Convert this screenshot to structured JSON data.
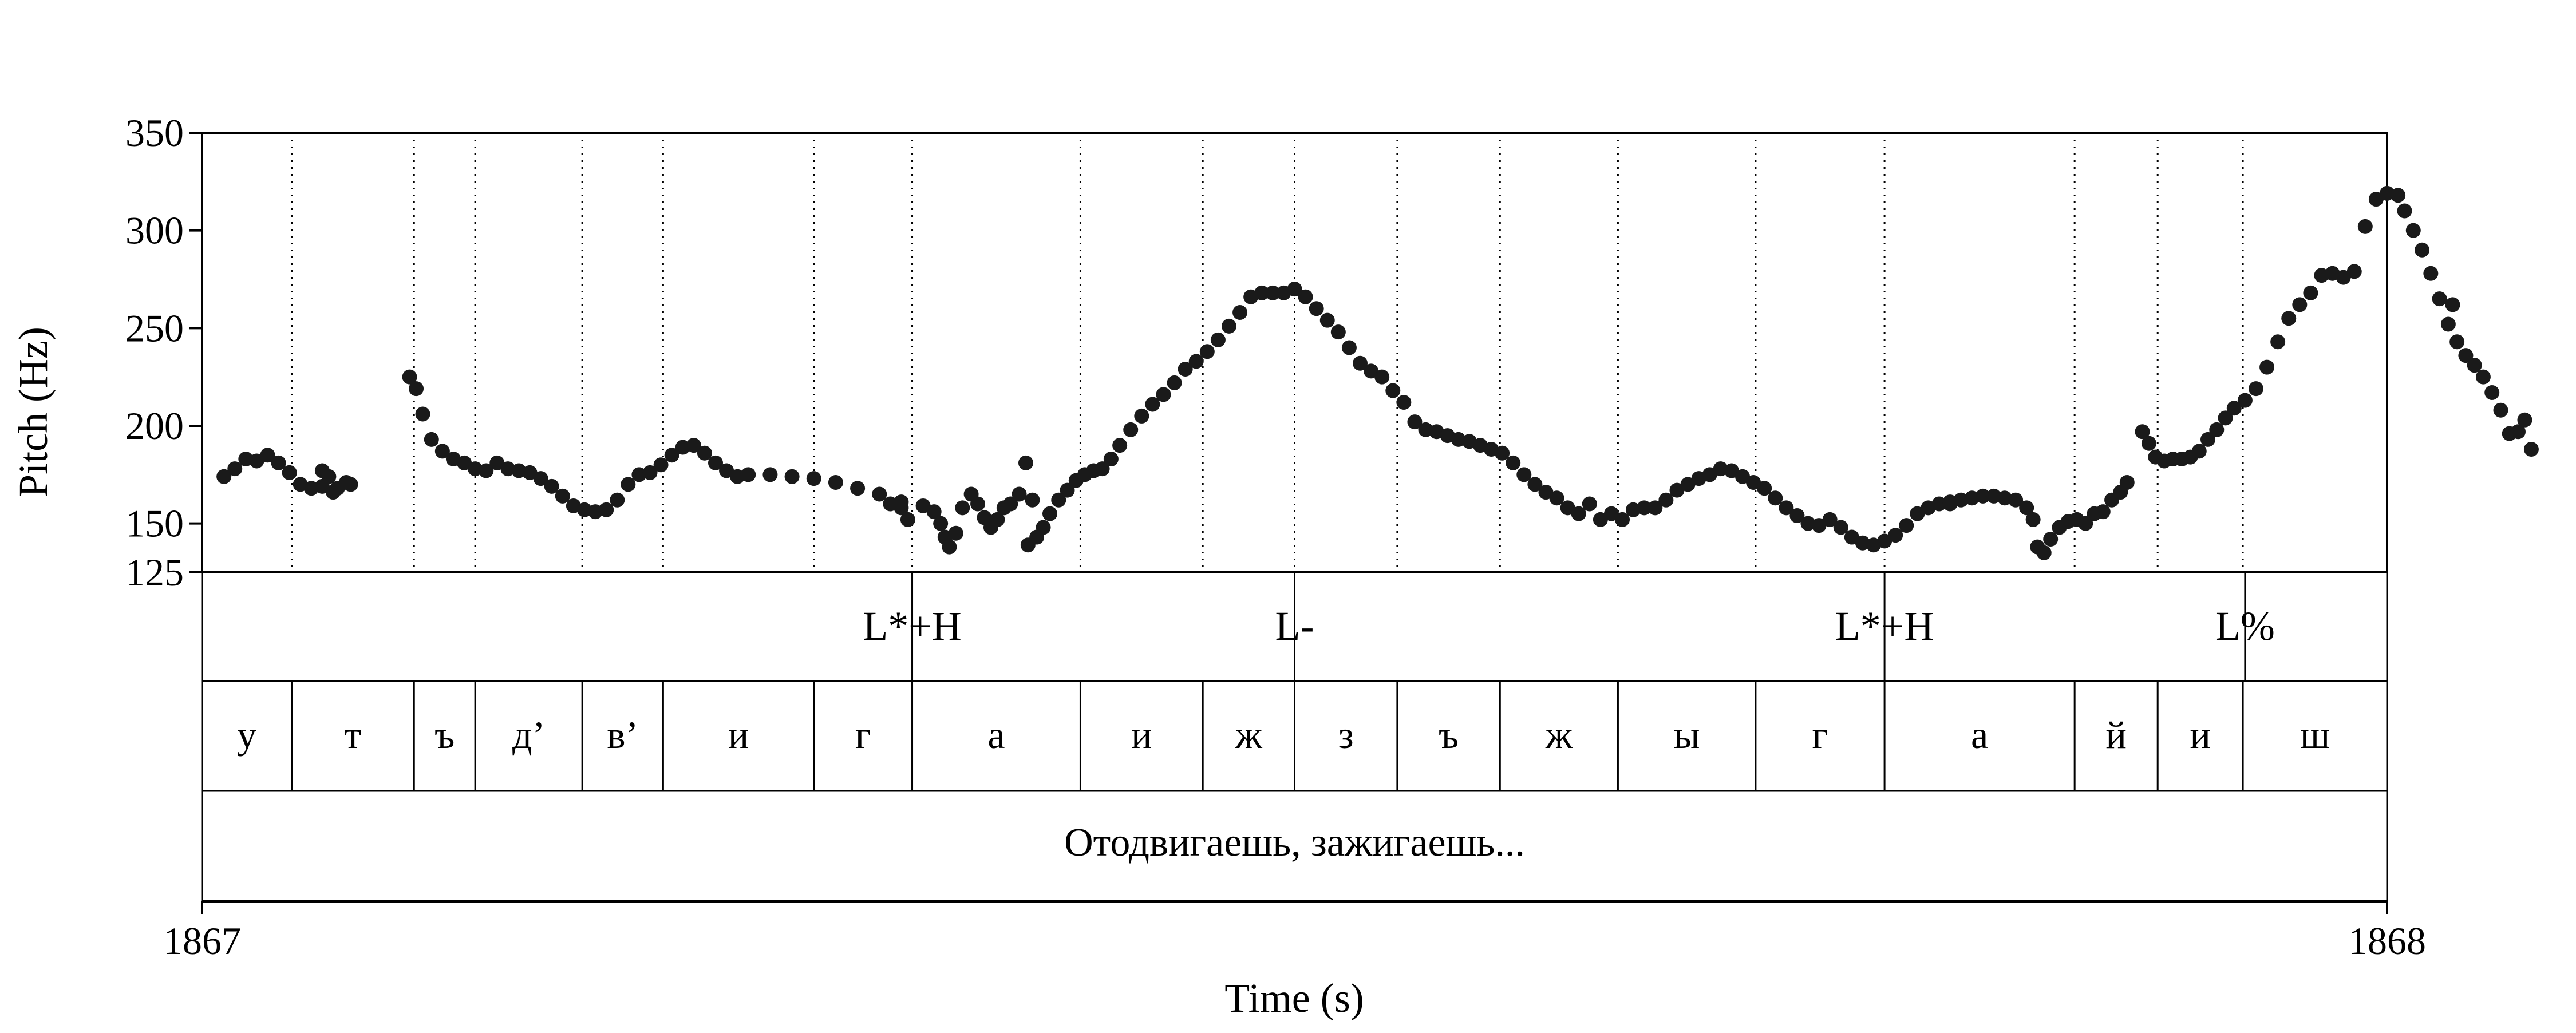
{
  "chart_data": {
    "type": "scatter",
    "title": "",
    "xlabel": "Time (s)",
    "ylabel": "Pitch (Hz)",
    "xlim": [
      1867,
      1868
    ],
    "ylim": [
      125,
      350
    ],
    "x_ticks": [
      {
        "value": 1867,
        "label": "1867"
      },
      {
        "value": 1868,
        "label": "1868"
      }
    ],
    "y_ticks": [
      {
        "value": 350,
        "label": "350"
      },
      {
        "value": 300,
        "label": "300"
      },
      {
        "value": 250,
        "label": "250"
      },
      {
        "value": 200,
        "label": "200"
      },
      {
        "value": 150,
        "label": "150"
      },
      {
        "value": 125,
        "label": "125"
      }
    ],
    "grid": false,
    "pitch_contour": [
      [
        [
          0.01,
          174
        ],
        [
          0.015,
          178
        ],
        [
          0.02,
          183
        ],
        [
          0.025,
          182
        ],
        [
          0.03,
          185
        ],
        [
          0.035,
          181
        ],
        [
          0.04,
          176
        ],
        [
          0.045,
          170
        ],
        [
          0.05,
          168
        ],
        [
          0.04,
          176
        ]
      ],
      [
        [
          0.055,
          169
        ]
      ],
      [
        [
          0.055,
          177
        ],
        [
          0.058,
          174
        ],
        [
          0.06,
          166
        ],
        [
          0.062,
          168
        ],
        [
          0.066,
          171
        ],
        [
          0.068,
          170
        ]
      ],
      [
        [
          0.095,
          225
        ],
        [
          0.098,
          219
        ],
        [
          0.101,
          206
        ],
        [
          0.105,
          193
        ],
        [
          0.11,
          187
        ],
        [
          0.115,
          183
        ],
        [
          0.12,
          181
        ],
        [
          0.125,
          178
        ],
        [
          0.13,
          177
        ],
        [
          0.135,
          181
        ],
        [
          0.14,
          178
        ],
        [
          0.145,
          177
        ],
        [
          0.15,
          176
        ],
        [
          0.155,
          173
        ],
        [
          0.16,
          169
        ],
        [
          0.165,
          164
        ],
        [
          0.17,
          159
        ],
        [
          0.175,
          157
        ],
        [
          0.18,
          156
        ],
        [
          0.185,
          157
        ],
        [
          0.19,
          162
        ],
        [
          0.195,
          170
        ],
        [
          0.2,
          175
        ],
        [
          0.205,
          176
        ],
        [
          0.21,
          180
        ],
        [
          0.215,
          185
        ],
        [
          0.22,
          189
        ],
        [
          0.225,
          190
        ],
        [
          0.23,
          186
        ],
        [
          0.235,
          181
        ],
        [
          0.24,
          177
        ],
        [
          0.245,
          174
        ],
        [
          0.25,
          175
        ],
        [
          0.26,
          175
        ],
        [
          0.27,
          174
        ],
        [
          0.28,
          173
        ],
        [
          0.29,
          171
        ],
        [
          0.3,
          168
        ],
        [
          0.31,
          165
        ],
        [
          0.32,
          161
        ],
        [
          0.33,
          159
        ],
        [
          0.335,
          156
        ],
        [
          0.338,
          150
        ],
        [
          0.34,
          143
        ],
        [
          0.342,
          138
        ],
        [
          0.345,
          145
        ],
        [
          0.348,
          158
        ],
        [
          0.352,
          165
        ],
        [
          0.355,
          160
        ],
        [
          0.358,
          153
        ],
        [
          0.361,
          148
        ],
        [
          0.364,
          152
        ],
        [
          0.367,
          158
        ],
        [
          0.37,
          160
        ],
        [
          0.374,
          165
        ],
        [
          0.377,
          181
        ],
        [
          0.38,
          162
        ]
      ],
      [
        [
          0.315,
          160
        ],
        [
          0.32,
          158
        ],
        [
          0.323,
          152
        ]
      ],
      [
        [
          0.378,
          139
        ],
        [
          0.382,
          143
        ],
        [
          0.385,
          148
        ],
        [
          0.388,
          155
        ],
        [
          0.392,
          162
        ],
        [
          0.396,
          167
        ],
        [
          0.4,
          172
        ],
        [
          0.404,
          175
        ],
        [
          0.408,
          177
        ],
        [
          0.412,
          178
        ],
        [
          0.416,
          183
        ],
        [
          0.42,
          190
        ],
        [
          0.425,
          198
        ],
        [
          0.43,
          205
        ],
        [
          0.435,
          211
        ],
        [
          0.44,
          216
        ],
        [
          0.445,
          222
        ],
        [
          0.45,
          229
        ],
        [
          0.455,
          233
        ],
        [
          0.46,
          238
        ],
        [
          0.465,
          244
        ],
        [
          0.47,
          251
        ],
        [
          0.475,
          258
        ],
        [
          0.48,
          266
        ],
        [
          0.485,
          268
        ],
        [
          0.49,
          268
        ],
        [
          0.495,
          268
        ],
        [
          0.5,
          270
        ],
        [
          0.505,
          266
        ],
        [
          0.51,
          260
        ],
        [
          0.515,
          254
        ],
        [
          0.52,
          248
        ],
        [
          0.525,
          240
        ],
        [
          0.53,
          232
        ],
        [
          0.535,
          228
        ],
        [
          0.54,
          225
        ],
        [
          0.545,
          218
        ],
        [
          0.55,
          212
        ],
        [
          0.555,
          202
        ],
        [
          0.56,
          198
        ],
        [
          0.565,
          197
        ],
        [
          0.57,
          195
        ],
        [
          0.575,
          193
        ],
        [
          0.58,
          192
        ],
        [
          0.585,
          190
        ],
        [
          0.59,
          188
        ],
        [
          0.595,
          186
        ],
        [
          0.6,
          181
        ],
        [
          0.605,
          175
        ],
        [
          0.61,
          170
        ],
        [
          0.615,
          166
        ],
        [
          0.62,
          163
        ],
        [
          0.625,
          158
        ],
        [
          0.63,
          155
        ],
        [
          0.635,
          160
        ],
        [
          0.64,
          152
        ],
        [
          0.645,
          155
        ],
        [
          0.65,
          152
        ],
        [
          0.655,
          157
        ],
        [
          0.66,
          158
        ],
        [
          0.665,
          158
        ],
        [
          0.67,
          162
        ],
        [
          0.675,
          167
        ],
        [
          0.68,
          170
        ],
        [
          0.685,
          173
        ],
        [
          0.69,
          175
        ],
        [
          0.695,
          178
        ],
        [
          0.7,
          177
        ],
        [
          0.705,
          174
        ],
        [
          0.71,
          171
        ],
        [
          0.715,
          168
        ],
        [
          0.72,
          163
        ],
        [
          0.725,
          158
        ],
        [
          0.73,
          154
        ],
        [
          0.735,
          150
        ],
        [
          0.74,
          149
        ],
        [
          0.745,
          152
        ],
        [
          0.75,
          148
        ],
        [
          0.755,
          143
        ],
        [
          0.76,
          140
        ],
        [
          0.765,
          139
        ],
        [
          0.77,
          141
        ],
        [
          0.775,
          144
        ],
        [
          0.78,
          149
        ],
        [
          0.785,
          155
        ],
        [
          0.79,
          158
        ],
        [
          0.795,
          160
        ],
        [
          0.8,
          161
        ],
        [
          0.805,
          162
        ],
        [
          0.81,
          163
        ],
        [
          0.815,
          164
        ],
        [
          0.82,
          164
        ],
        [
          0.825,
          163
        ],
        [
          0.83,
          162
        ],
        [
          0.835,
          158
        ],
        [
          0.838,
          152
        ],
        [
          0.84,
          138
        ],
        [
          0.843,
          135
        ],
        [
          0.846,
          142
        ],
        [
          0.85,
          148
        ],
        [
          0.854,
          151
        ],
        [
          0.858,
          152
        ],
        [
          0.862,
          150
        ],
        [
          0.866,
          155
        ],
        [
          0.87,
          156
        ],
        [
          0.874,
          162
        ],
        [
          0.878,
          166
        ],
        [
          0.881,
          171
        ]
      ],
      [
        [
          0.8,
          160
        ]
      ],
      [
        [
          0.888,
          197
        ],
        [
          0.891,
          191
        ],
        [
          0.894,
          184
        ],
        [
          0.898,
          182
        ],
        [
          0.902,
          183
        ],
        [
          0.906,
          183
        ],
        [
          0.91,
          184
        ],
        [
          0.914,
          187
        ],
        [
          0.918,
          193
        ],
        [
          0.922,
          198
        ],
        [
          0.926,
          204
        ],
        [
          0.93,
          209
        ],
        [
          0.935,
          213
        ],
        [
          0.94,
          219
        ],
        [
          0.945,
          230
        ],
        [
          0.95,
          243
        ],
        [
          0.955,
          255
        ],
        [
          0.96,
          262
        ],
        [
          0.965,
          268
        ],
        [
          0.97,
          277
        ],
        [
          0.975,
          278
        ],
        [
          0.98,
          276
        ],
        [
          0.985,
          279
        ],
        [
          0.99,
          302
        ],
        [
          0.995,
          316
        ],
        [
          1.0,
          319
        ],
        [
          1.005,
          318
        ],
        [
          1.008,
          310
        ],
        [
          1.012,
          300
        ],
        [
          1.016,
          290
        ],
        [
          1.02,
          278
        ],
        [
          1.024,
          265
        ],
        [
          1.028,
          252
        ],
        [
          1.032,
          243
        ],
        [
          1.036,
          236
        ],
        [
          1.04,
          231
        ],
        [
          1.044,
          225
        ],
        [
          1.048,
          217
        ],
        [
          1.052,
          208
        ],
        [
          1.056,
          196
        ],
        [
          1.06,
          197
        ],
        [
          1.063,
          203
        ],
        [
          1.066,
          188
        ]
      ],
      [
        [
          1.03,
          262
        ]
      ]
    ],
    "tiers": [
      {
        "name": "tones",
        "points": [
          {
            "time": 0.325,
            "label": "L*+H"
          },
          {
            "time": 0.5,
            "label": "L-"
          },
          {
            "time": 0.77,
            "label": "L*+H"
          },
          {
            "time": 0.935,
            "label": "L%"
          }
        ]
      },
      {
        "name": "segments",
        "intervals": [
          {
            "start": 0.0,
            "end": 0.041,
            "label": "у"
          },
          {
            "start": 0.041,
            "end": 0.097,
            "label": "т"
          },
          {
            "start": 0.097,
            "end": 0.125,
            "label": "ъ"
          },
          {
            "start": 0.125,
            "end": 0.174,
            "label": "д’"
          },
          {
            "start": 0.174,
            "end": 0.211,
            "label": "в’"
          },
          {
            "start": 0.211,
            "end": 0.28,
            "label": "и"
          },
          {
            "start": 0.28,
            "end": 0.325,
            "label": "г"
          },
          {
            "start": 0.325,
            "end": 0.402,
            "label": "а"
          },
          {
            "start": 0.402,
            "end": 0.458,
            "label": "и"
          },
          {
            "start": 0.458,
            "end": 0.5,
            "label": "ж"
          },
          {
            "start": 0.5,
            "end": 0.547,
            "label": "з"
          },
          {
            "start": 0.547,
            "end": 0.594,
            "label": "ъ"
          },
          {
            "start": 0.594,
            "end": 0.648,
            "label": "ж"
          },
          {
            "start": 0.648,
            "end": 0.711,
            "label": "ы"
          },
          {
            "start": 0.711,
            "end": 0.77,
            "label": "г"
          },
          {
            "start": 0.77,
            "end": 0.857,
            "label": "а"
          },
          {
            "start": 0.857,
            "end": 0.895,
            "label": "й"
          },
          {
            "start": 0.895,
            "end": 0.934,
            "label": "и"
          },
          {
            "start": 0.934,
            "end": 1.0,
            "label": "ш"
          }
        ]
      },
      {
        "name": "phrase",
        "intervals": [
          {
            "start": 0.0,
            "end": 1.0,
            "label": "Отодвигаешь, зажигаешь..."
          }
        ]
      }
    ]
  }
}
